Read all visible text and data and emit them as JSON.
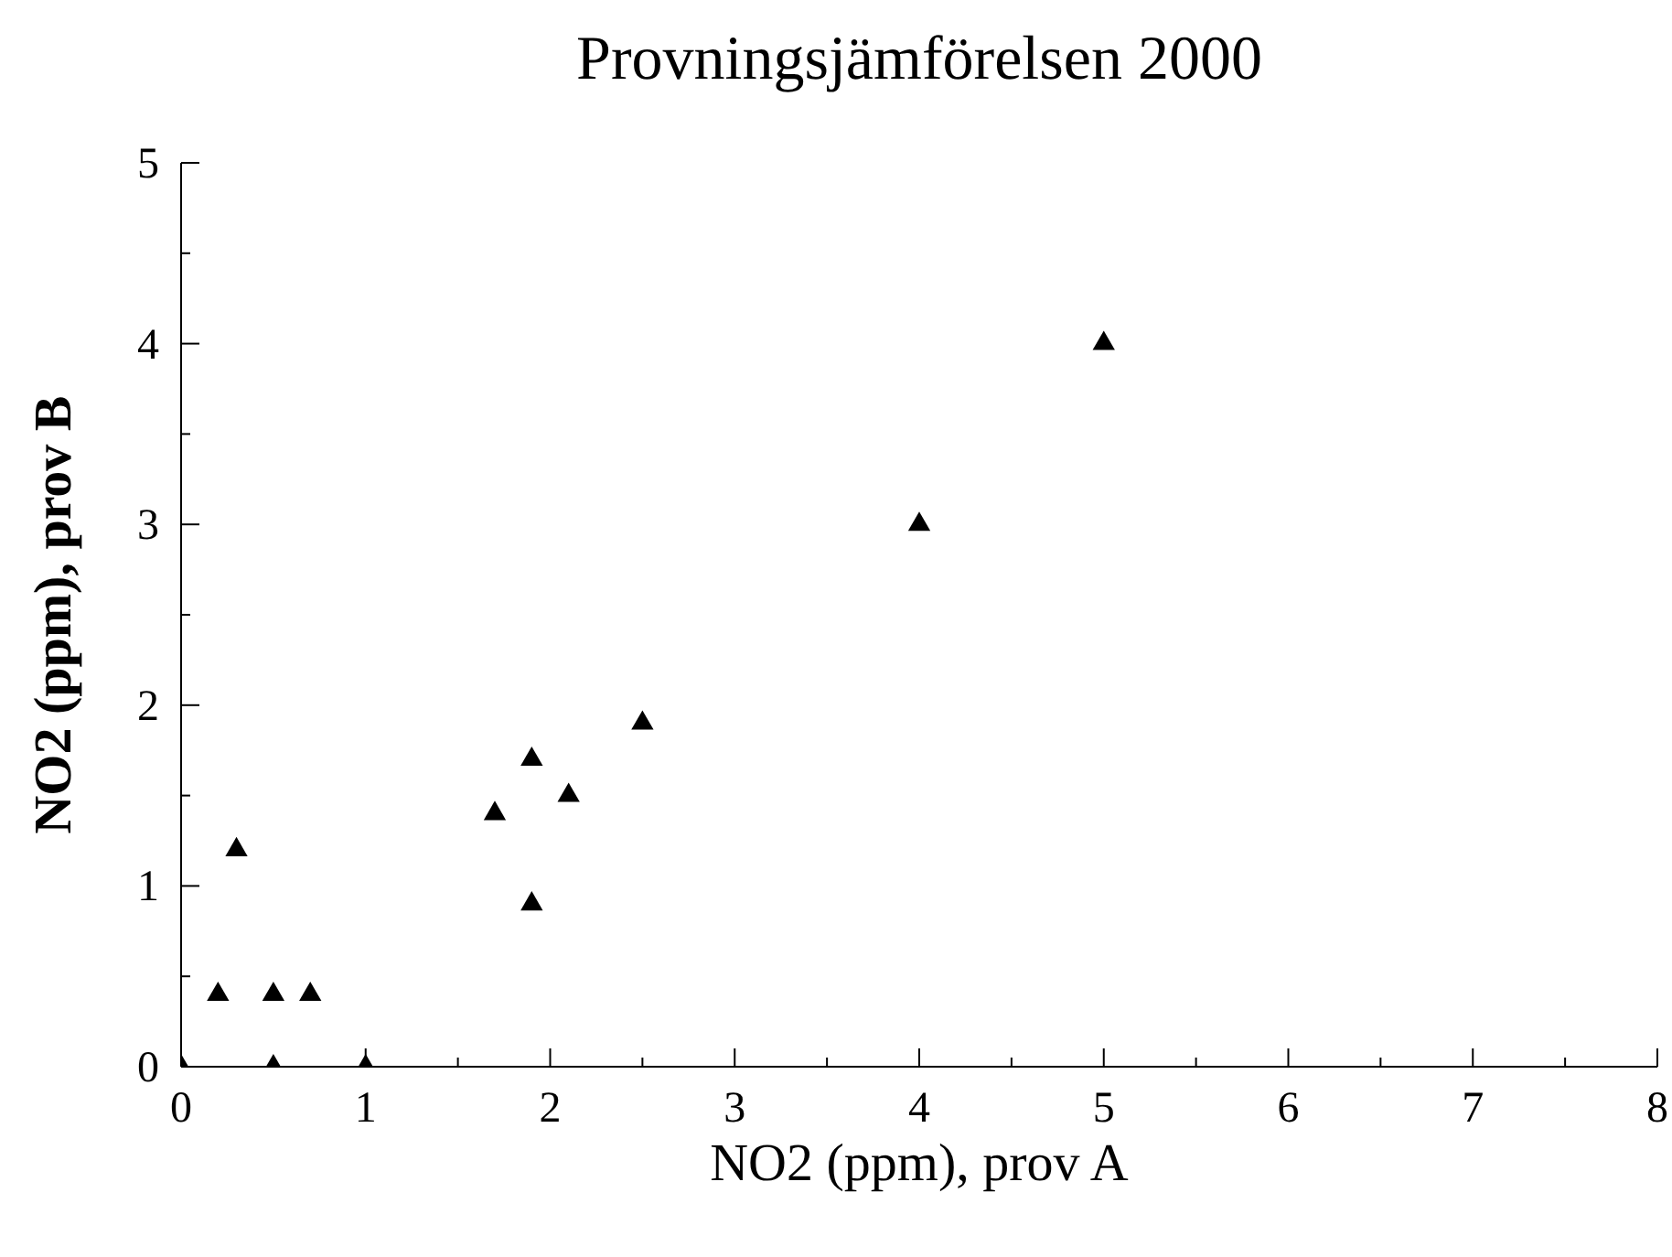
{
  "chart_data": {
    "type": "scatter",
    "title": "Provningsjämförelsen 2000",
    "xlabel": "NO2 (ppm), prov A",
    "ylabel": "NO2 (ppm), prov B",
    "x": [
      0,
      0.2,
      0.3,
      0.5,
      0.5,
      0.7,
      1.0,
      1.7,
      1.9,
      1.9,
      2.1,
      2.5,
      4.0,
      5.0
    ],
    "series": [
      {
        "color": "#000000",
        "values": [
          0,
          0.4,
          1.2,
          0.4,
          0,
          0.4,
          0,
          1.4,
          1.7,
          0.9,
          1.5,
          1.9,
          3.0,
          4.0
        ]
      }
    ],
    "marker": "triangle",
    "grid": false,
    "legend": false,
    "xlim": [
      0,
      8
    ],
    "ylim": [
      0,
      5
    ],
    "xticks": [
      0,
      {
        "value": 0.5,
        "label": null
      },
      1,
      {
        "value": 1.5,
        "label": null
      },
      2,
      {
        "value": 2.5,
        "label": null
      },
      3,
      {
        "value": 3.5,
        "label": null
      },
      4,
      {
        "value": 4.5,
        "label": null
      },
      5,
      {
        "value": 5.5,
        "label": null
      },
      6,
      {
        "value": 6.5,
        "label": null
      },
      7,
      {
        "value": 7.5,
        "label": null
      },
      8
    ],
    "yticks": [
      0,
      {
        "value": 0.5,
        "label": null
      },
      1,
      {
        "value": 1.5,
        "label": null
      },
      2,
      {
        "value": 2.5,
        "label": null
      },
      3,
      {
        "value": 3.5,
        "label": null
      },
      4,
      {
        "value": 4.5,
        "label": null
      },
      5
    ]
  }
}
